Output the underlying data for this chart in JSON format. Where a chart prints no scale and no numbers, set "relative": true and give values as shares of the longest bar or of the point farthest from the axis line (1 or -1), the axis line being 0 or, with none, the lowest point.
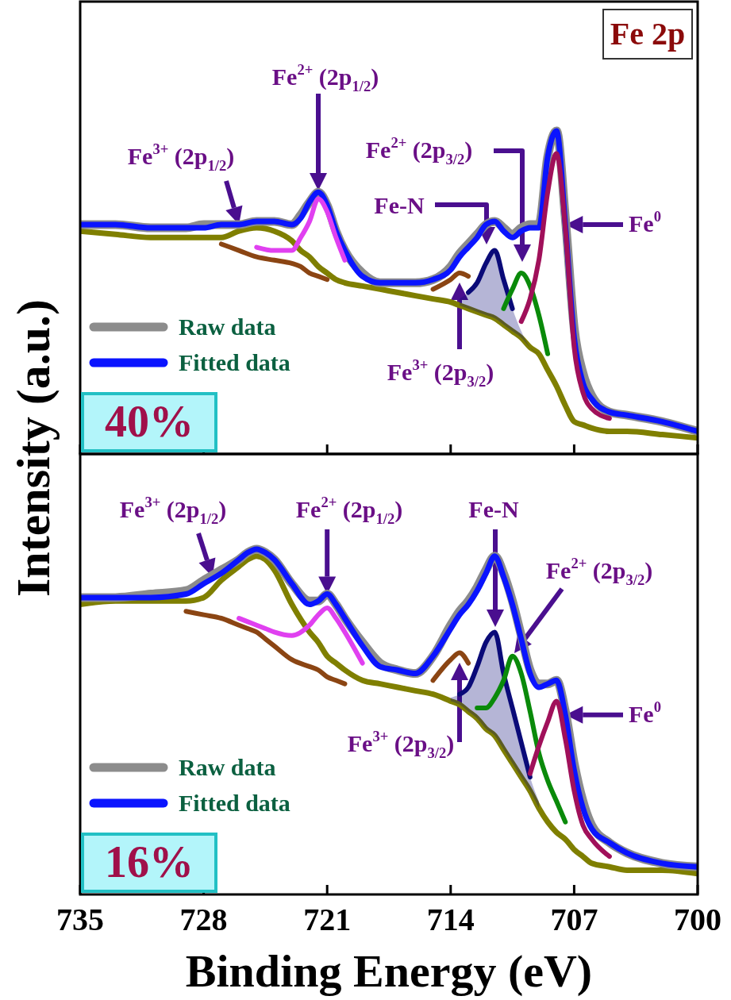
{
  "chart_data": [
    {
      "type": "line",
      "relative": true,
      "xlim": [
        735,
        700
      ],
      "xticks": [
        735,
        728,
        721,
        714,
        707,
        700
      ],
      "tick_labels": false,
      "ylabel": "Intensity (a.u.)",
      "legend": "bottom left",
      "x": [
        735,
        733,
        731,
        729,
        728,
        727,
        726,
        725,
        724,
        723,
        722.5,
        722,
        721.5,
        721,
        720.5,
        720,
        719,
        718,
        717,
        716,
        715,
        714,
        713.5,
        713,
        712.5,
        712,
        711.5,
        711,
        710.5,
        710,
        709.5,
        709,
        708.5,
        708,
        707.5,
        707,
        706.5,
        706,
        705,
        704,
        702,
        700
      ],
      "annotations": [
        {
          "text": "Fe$^{3+}$ (2p$_{1/2}$)",
          "x": 726,
          "y": 0.71
        },
        "Fe$^{2+}$ (2p$_{1/2}$)",
        "Fe$^{2+}$ (2p$_{3/2}$)",
        "Fe-N",
        "Fe$^{3+}$ (2p$_{3/2}$)",
        {
          "text": "Fe$^{0}$",
          "x": 707.5,
          "y": 0.71
        },
        "40%",
        "Fe 2p"
      ],
      "series": [
        {
          "color": "#7f7f00",
          "values": [
            0.69,
            0.68,
            0.67,
            0.67,
            0.67,
            0.67,
            0.69,
            0.7,
            0.69,
            0.66,
            0.63,
            0.61,
            0.58,
            0.56,
            0.54,
            0.53,
            0.52,
            0.51,
            0.5,
            0.49,
            0.48,
            0.47,
            0.46,
            0.45,
            0.44,
            0.43,
            0.42,
            0.4,
            0.38,
            0.36,
            0.33,
            0.31,
            0.26,
            0.21,
            0.15,
            0.1,
            0.09,
            0.08,
            0.07,
            0.07,
            0.06,
            0.05
          ]
        },
        {
          "name": "Raw data",
          "color": "#8c8c8c",
          "values": [
            0.71,
            0.71,
            0.7,
            0.7,
            0.71,
            0.71,
            0.71,
            0.72,
            0.72,
            0.71,
            0.74,
            0.78,
            0.81,
            0.77,
            0.69,
            0.63,
            0.56,
            0.53,
            0.53,
            0.53,
            0.54,
            0.58,
            0.62,
            0.65,
            0.68,
            0.71,
            0.72,
            0.7,
            0.68,
            0.7,
            0.71,
            0.71,
            0.92,
            1.0,
            0.73,
            0.39,
            0.25,
            0.18,
            0.13,
            0.12,
            0.1,
            0.07
          ]
        },
        {
          "name": "Fitted data",
          "color": "#0a14ff",
          "values": [
            0.71,
            0.71,
            0.7,
            0.7,
            0.7,
            0.71,
            0.71,
            0.72,
            0.72,
            0.71,
            0.73,
            0.78,
            0.81,
            0.77,
            0.69,
            0.63,
            0.55,
            0.53,
            0.53,
            0.53,
            0.54,
            0.57,
            0.61,
            0.64,
            0.67,
            0.71,
            0.72,
            0.69,
            0.67,
            0.69,
            0.7,
            0.7,
            0.92,
            1.0,
            0.71,
            0.36,
            0.22,
            0.17,
            0.13,
            0.12,
            0.1,
            0.07
          ]
        },
        {
          "color": "#e040f0",
          "values": [
            null,
            null,
            null,
            null,
            null,
            null,
            null,
            0.64,
            0.63,
            0.63,
            0.67,
            0.72,
            0.79,
            0.75,
            0.67,
            0.6,
            null,
            null,
            null,
            null,
            null,
            null,
            null,
            null,
            null,
            null,
            null,
            null,
            null,
            null,
            null,
            null,
            null,
            null,
            null,
            null,
            null,
            null,
            null,
            null,
            null,
            null
          ]
        },
        {
          "color": "#8b4513",
          "values": [
            null,
            null,
            null,
            null,
            null,
            0.65,
            0.63,
            0.61,
            0.6,
            0.59,
            0.58,
            0.56,
            0.55,
            0.54,
            null,
            null,
            null,
            null,
            null,
            null,
            0.51,
            0.54,
            0.56,
            0.55,
            null,
            null,
            null,
            null,
            null,
            null,
            null,
            null,
            null,
            null,
            null,
            null,
            null,
            null,
            null,
            null,
            null,
            null
          ]
        },
        {
          "color": "#0a0a78",
          "values": [
            null,
            null,
            null,
            null,
            null,
            null,
            null,
            null,
            null,
            null,
            null,
            null,
            null,
            null,
            null,
            null,
            null,
            null,
            null,
            null,
            null,
            null,
            null,
            0.5,
            0.53,
            0.59,
            0.63,
            0.54,
            0.45,
            null,
            null,
            null,
            null,
            null,
            null,
            null,
            null,
            null,
            null,
            null,
            null,
            null
          ],
          "upper": [
            null,
            null,
            null,
            null,
            null,
            null,
            null,
            null,
            null,
            null,
            null,
            null,
            null,
            null,
            null,
            null,
            null,
            null,
            null,
            null,
            null,
            null,
            0.48,
            0.5,
            0.53,
            0.59,
            0.63,
            0.54,
            0.45,
            0.38,
            0.33,
            0.31,
            null,
            null,
            null,
            null,
            null,
            null,
            null,
            null,
            null,
            null
          ],
          "lower": [
            null,
            null,
            null,
            null,
            null,
            null,
            null,
            null,
            null,
            null,
            null,
            null,
            null,
            null,
            null,
            null,
            null,
            null,
            null,
            null,
            null,
            null,
            0.46,
            0.45,
            0.44,
            0.43,
            0.42,
            0.4,
            0.38,
            0.36,
            0.33,
            0.31,
            null,
            null,
            null,
            null,
            null,
            null,
            null,
            null,
            null,
            null
          ]
        },
        {
          "color": "#0a8a0a",
          "values": [
            null,
            null,
            null,
            null,
            null,
            null,
            null,
            null,
            null,
            null,
            null,
            null,
            null,
            null,
            null,
            null,
            null,
            null,
            null,
            null,
            null,
            null,
            null,
            null,
            null,
            null,
            null,
            0.45,
            0.51,
            0.56,
            0.52,
            0.43,
            0.31,
            null,
            null,
            null,
            null,
            null,
            null,
            null,
            null,
            null
          ]
        },
        {
          "color": "#a0105a",
          "values": [
            null,
            null,
            null,
            null,
            null,
            null,
            null,
            null,
            null,
            null,
            null,
            null,
            null,
            null,
            null,
            null,
            null,
            null,
            null,
            null,
            null,
            null,
            null,
            null,
            null,
            null,
            null,
            null,
            null,
            0.41,
            0.48,
            0.6,
            0.81,
            0.93,
            0.7,
            0.33,
            0.19,
            0.14,
            0.11,
            null,
            null,
            null
          ]
        }
      ]
    },
    {
      "type": "line",
      "relative": true,
      "xlim": [
        735,
        700
      ],
      "xticks": [
        735,
        728,
        721,
        714,
        707,
        700
      ],
      "xlabel": "Binding Energy (eV)",
      "legend": "bottom left",
      "x": [
        735,
        733,
        731,
        729,
        728,
        727,
        726,
        725.5,
        725,
        724.5,
        724,
        723,
        722,
        721.5,
        721,
        720.5,
        720,
        719,
        718,
        717,
        716,
        715,
        714,
        713.5,
        713,
        712.5,
        712,
        711.5,
        711,
        710.5,
        710,
        709.5,
        709,
        708.5,
        708,
        707.5,
        707,
        706.5,
        706,
        705,
        704,
        702,
        700
      ],
      "annotations": [
        {
          "text": "Fe$^{3+}$ (2p$_{1/2}$)",
          "x": 727.5,
          "y": 0.92
        },
        {
          "text": "Fe$^{2+}$ (2p$_{1/2}$)",
          "x": 721,
          "y": 0.87
        },
        "Fe-N",
        "Fe$^{2+}$ (2p$_{3/2}$)",
        "Fe$^{3+}$ (2p$_{3/2}$)",
        {
          "text": "Fe$^{0}$",
          "x": 707.5,
          "y": 0.52
        },
        "16%"
      ],
      "series": [
        {
          "color": "#7f7f00",
          "values": [
            0.84,
            0.85,
            0.85,
            0.85,
            0.86,
            0.91,
            0.95,
            0.97,
            0.98,
            0.97,
            0.94,
            0.84,
            0.76,
            0.73,
            0.69,
            0.67,
            0.65,
            0.62,
            0.61,
            0.6,
            0.59,
            0.58,
            0.56,
            0.55,
            0.53,
            0.51,
            0.48,
            0.46,
            0.42,
            0.38,
            0.34,
            0.3,
            0.25,
            0.21,
            0.18,
            0.16,
            0.13,
            0.11,
            0.09,
            0.08,
            0.07,
            0.07,
            0.06
          ]
        },
        {
          "name": "Raw data",
          "color": "#8c8c8c",
          "values": [
            0.86,
            0.86,
            0.87,
            0.88,
            0.91,
            0.94,
            0.97,
            0.99,
            1.0,
            0.99,
            0.97,
            0.9,
            0.85,
            0.85,
            0.87,
            0.84,
            0.8,
            0.73,
            0.67,
            0.65,
            0.64,
            0.69,
            0.78,
            0.82,
            0.85,
            0.89,
            0.94,
            0.98,
            0.93,
            0.85,
            0.75,
            0.65,
            0.61,
            0.61,
            0.62,
            0.53,
            0.38,
            0.27,
            0.2,
            0.15,
            0.12,
            0.09,
            0.08
          ]
        },
        {
          "name": "Fitted data",
          "color": "#0a14ff",
          "values": [
            0.86,
            0.86,
            0.86,
            0.87,
            0.9,
            0.93,
            0.97,
            0.99,
            1.0,
            0.99,
            0.97,
            0.9,
            0.84,
            0.85,
            0.87,
            0.84,
            0.8,
            0.72,
            0.66,
            0.65,
            0.64,
            0.69,
            0.77,
            0.81,
            0.84,
            0.88,
            0.93,
            0.98,
            0.92,
            0.84,
            0.74,
            0.64,
            0.6,
            0.61,
            0.62,
            0.52,
            0.36,
            0.25,
            0.19,
            0.15,
            0.12,
            0.09,
            0.08
          ]
        },
        {
          "color": "#e040f0",
          "values": [
            null,
            null,
            null,
            null,
            null,
            null,
            0.8,
            0.79,
            0.78,
            0.77,
            0.76,
            0.75,
            0.78,
            0.81,
            0.83,
            0.8,
            0.76,
            0.67,
            null,
            null,
            null,
            null,
            null,
            null,
            null,
            null,
            null,
            null,
            null,
            null,
            null,
            null,
            null,
            null,
            null,
            null,
            null,
            null,
            null,
            null,
            null,
            null,
            null
          ]
        },
        {
          "color": "#8b4513",
          "values": [
            null,
            null,
            null,
            0.82,
            0.81,
            0.8,
            0.78,
            0.77,
            0.76,
            0.74,
            0.72,
            0.68,
            0.66,
            0.65,
            0.63,
            0.62,
            0.61,
            null,
            null,
            null,
            null,
            0.62,
            0.68,
            0.7,
            0.67,
            null,
            null,
            null,
            null,
            null,
            null,
            null,
            null,
            null,
            null,
            null,
            null,
            null,
            null,
            null,
            null,
            null,
            null
          ]
        },
        {
          "color": "#0a0a78",
          "values": [
            null,
            null,
            null,
            null,
            null,
            null,
            null,
            null,
            null,
            null,
            null,
            null,
            null,
            null,
            null,
            null,
            null,
            null,
            null,
            null,
            null,
            null,
            null,
            0.58,
            0.6,
            0.66,
            0.73,
            0.76,
            0.64,
            0.54,
            0.44,
            0.34,
            null,
            null,
            null,
            null,
            null,
            null,
            null,
            null,
            null,
            null,
            null
          ],
          "upper": [
            null,
            null,
            null,
            null,
            null,
            null,
            null,
            null,
            null,
            null,
            null,
            null,
            null,
            null,
            null,
            null,
            null,
            null,
            null,
            null,
            null,
            null,
            0.57,
            0.58,
            0.6,
            0.66,
            0.73,
            0.76,
            0.64,
            0.54,
            0.44,
            0.34,
            0.27,
            null,
            null,
            null,
            null,
            null,
            null,
            null,
            null,
            null,
            null
          ],
          "lower": [
            null,
            null,
            null,
            null,
            null,
            null,
            null,
            null,
            null,
            null,
            null,
            null,
            null,
            null,
            null,
            null,
            null,
            null,
            null,
            null,
            null,
            null,
            0.56,
            0.55,
            0.53,
            0.51,
            0.48,
            0.46,
            0.42,
            0.38,
            0.34,
            0.3,
            0.25,
            null,
            null,
            null,
            null,
            null,
            null,
            null,
            null,
            null,
            null
          ]
        },
        {
          "color": "#0a8a0a",
          "values": [
            null,
            null,
            null,
            null,
            null,
            null,
            null,
            null,
            null,
            null,
            null,
            null,
            null,
            null,
            null,
            null,
            null,
            null,
            null,
            null,
            null,
            null,
            null,
            null,
            null,
            0.54,
            0.54,
            0.57,
            0.62,
            0.69,
            0.64,
            0.53,
            0.41,
            0.33,
            0.27,
            0.21,
            null,
            null,
            null,
            null,
            null,
            null,
            null
          ]
        },
        {
          "color": "#a0105a",
          "values": [
            null,
            null,
            null,
            null,
            null,
            null,
            null,
            null,
            null,
            null,
            null,
            null,
            null,
            null,
            null,
            null,
            null,
            null,
            null,
            null,
            null,
            null,
            null,
            null,
            null,
            null,
            null,
            null,
            null,
            null,
            null,
            0.35,
            0.43,
            0.5,
            0.56,
            0.45,
            0.3,
            0.2,
            0.16,
            0.11,
            null,
            null,
            null
          ]
        }
      ]
    }
  ]
}
